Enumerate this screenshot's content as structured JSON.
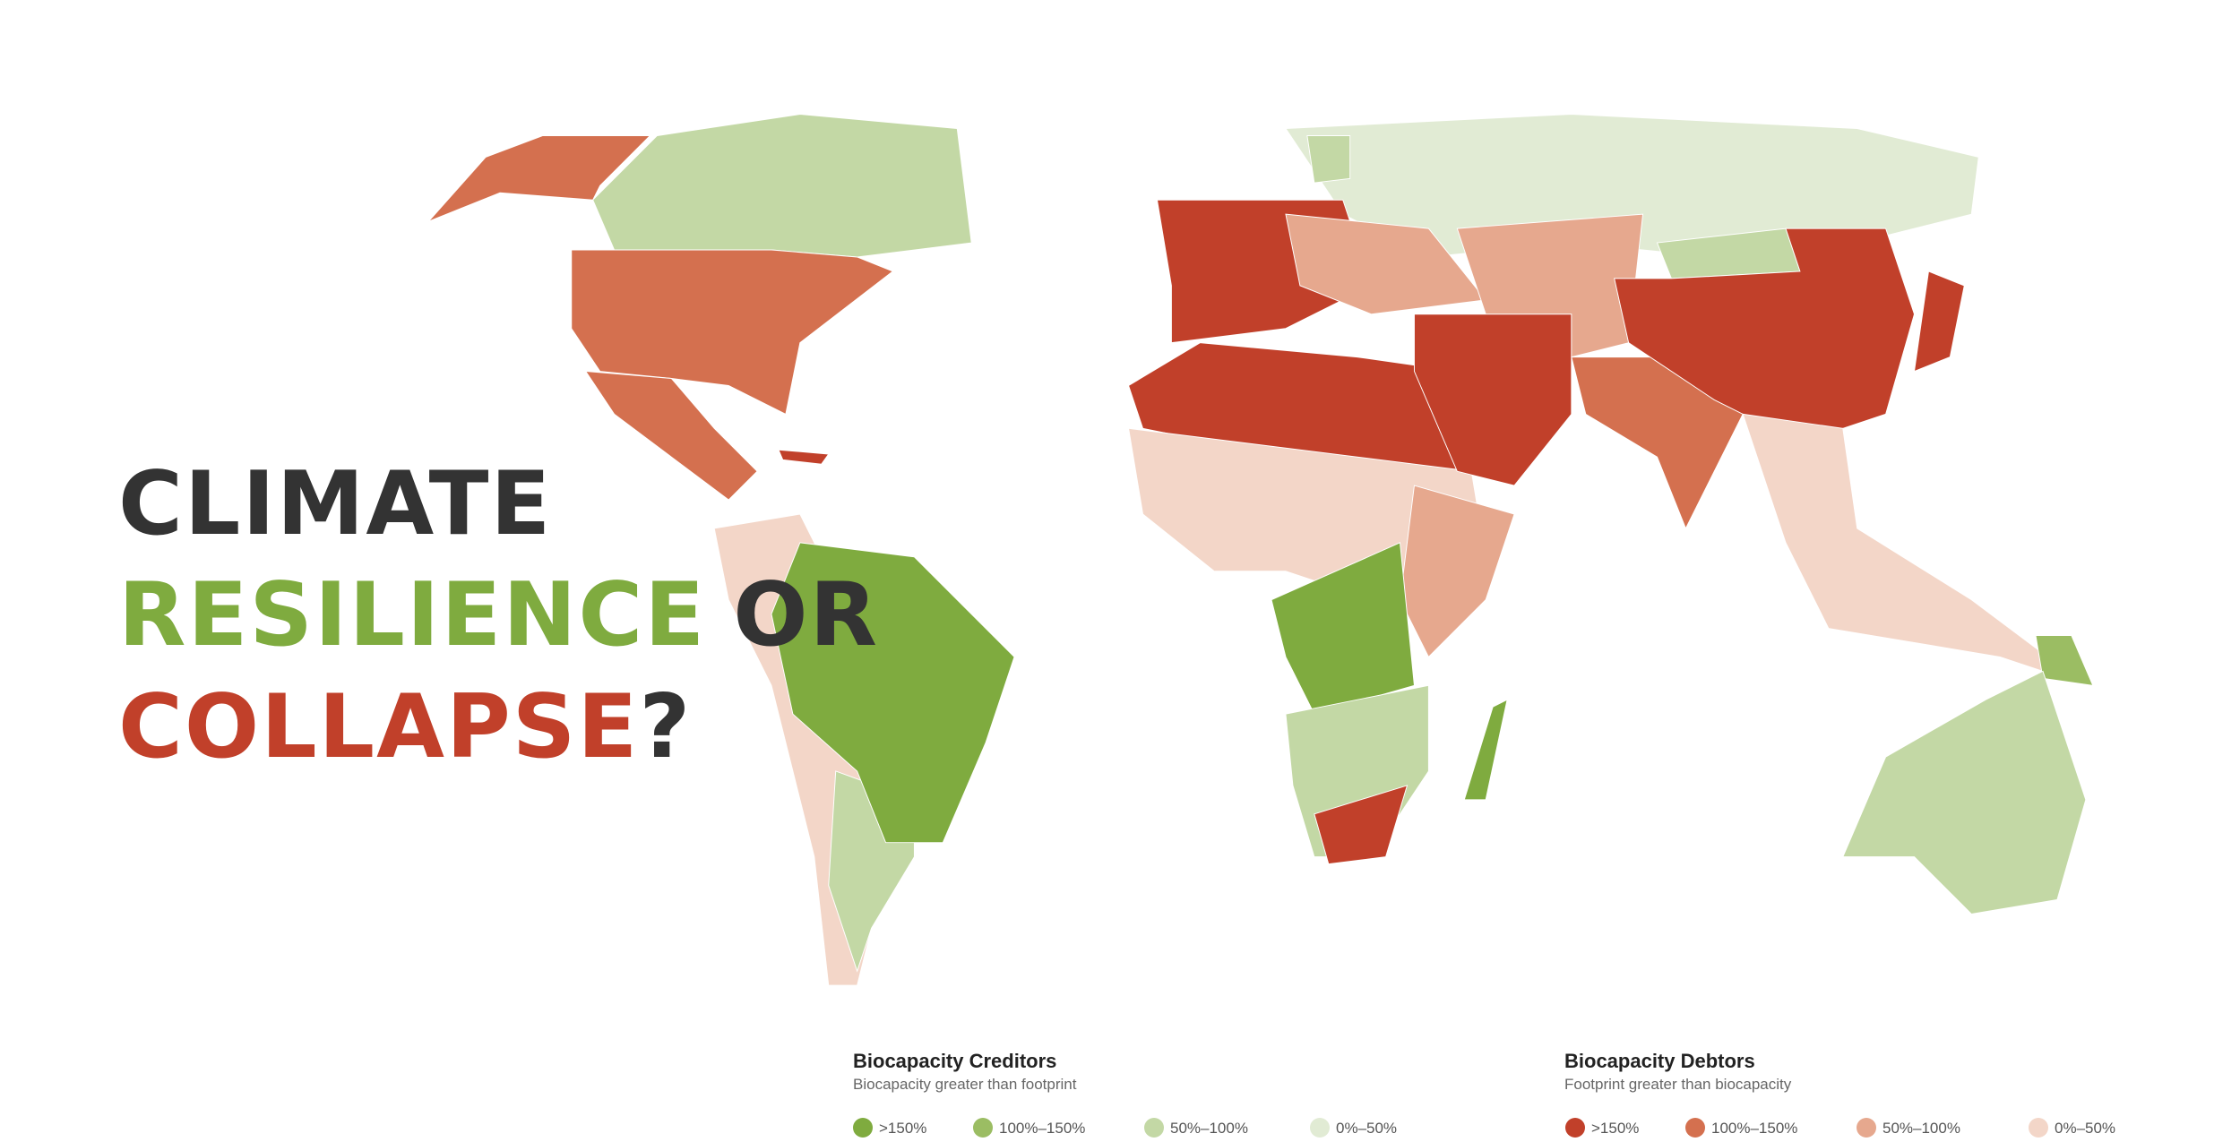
{
  "headline": {
    "line1": "CLIMATE",
    "line2": [
      "RESILIENCE",
      "OR"
    ],
    "line3": [
      "COLLAPSE",
      "?"
    ]
  },
  "legend": {
    "creditors": {
      "title": "Biocapacity Creditors",
      "subtitle": "Biocapacity greater than footprint",
      "items": [
        {
          "label": ">150%",
          "color": "#7fab3f"
        },
        {
          "label": "100%–150%",
          "color": "#9bbd63"
        },
        {
          "label": "50%–100%",
          "color": "#c3d8a5"
        },
        {
          "label": "0%–50%",
          "color": "#e1ebd4"
        }
      ]
    },
    "debtors": {
      "title": "Biocapacity Debtors",
      "subtitle": "Footprint greater than biocapacity",
      "items": [
        {
          "label": ">150%",
          "color": "#c1402a"
        },
        {
          "label": "100%–150%",
          "color": "#d4704f"
        },
        {
          "label": "50%–100%",
          "color": "#e6a88e"
        },
        {
          "label": "0%–50%",
          "color": "#f3d6c8"
        }
      ]
    }
  }
}
